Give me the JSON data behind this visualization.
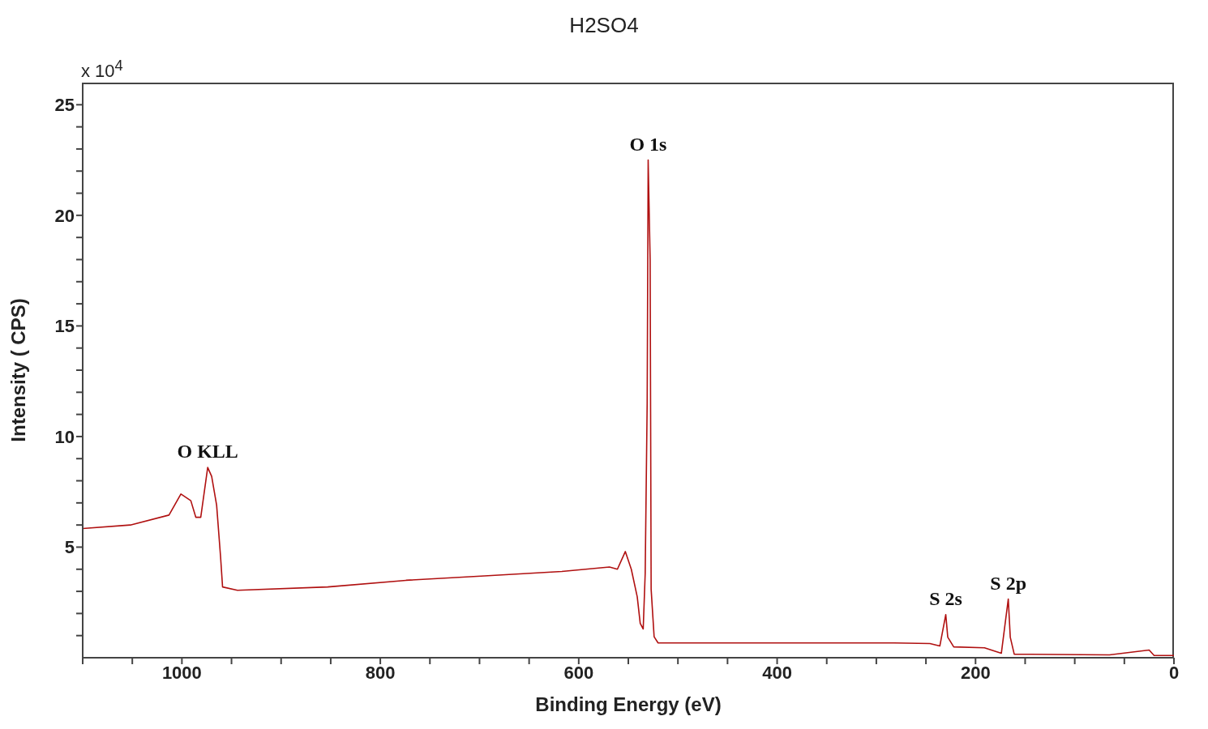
{
  "chart_data": {
    "type": "line",
    "title": "H2SO4",
    "xlabel": "Binding Energy (eV)",
    "ylabel": "Intensity ( CPS)",
    "annotations": [
      "x 10$^{4}$",
      {
        "text": "O KLL",
        "x": 974,
        "y": 8.6
      },
      {
        "text": "O 1s",
        "x": 530,
        "y": 22.5
      },
      {
        "text": "S 2s",
        "x": 230,
        "y": 1.95
      },
      {
        "text": "S 2p",
        "x": 167,
        "y": 2.65
      }
    ],
    "series": [
      {
        "color": "#b01010",
        "x": [
          1100,
          1052,
          1013,
          1001,
          991,
          986,
          981,
          974,
          970,
          965,
          961,
          959,
          944,
          853,
          774,
          695,
          617,
          569,
          561,
          553,
          547,
          541,
          538,
          535,
          533,
          531,
          530,
          528,
          527,
          524,
          520,
          380,
          282,
          246,
          236,
          230,
          228,
          222,
          191,
          174,
          167,
          165,
          161,
          65,
          25,
          20,
          0
        ],
        "values": [
          5.84,
          6.0,
          6.45,
          7.4,
          7.1,
          6.35,
          6.35,
          8.6,
          8.2,
          6.9,
          4.55,
          3.2,
          3.05,
          3.2,
          3.5,
          3.7,
          3.9,
          4.1,
          4.0,
          4.8,
          4.0,
          2.75,
          1.55,
          1.3,
          3.8,
          11.5,
          22.5,
          18,
          3.1,
          0.95,
          0.67,
          0.67,
          0.67,
          0.64,
          0.53,
          1.95,
          0.93,
          0.49,
          0.45,
          0.2,
          2.65,
          0.93,
          0.16,
          0.13,
          0.35,
          0.1,
          0.1
        ]
      }
    ],
    "xlim": [
      1100,
      0
    ],
    "xticks": [
      {
        "value": 1100,
        "label": null
      },
      {
        "value": 1050,
        "label": null
      },
      1000,
      {
        "value": 950,
        "label": null
      },
      {
        "value": 900,
        "label": null
      },
      {
        "value": 850,
        "label": null
      },
      800,
      {
        "value": 750,
        "label": null
      },
      {
        "value": 700,
        "label": null
      },
      {
        "value": 650,
        "label": null
      },
      600,
      {
        "value": 550,
        "label": null
      },
      {
        "value": 500,
        "label": null
      },
      {
        "value": 450,
        "label": null
      },
      400,
      {
        "value": 350,
        "label": null
      },
      {
        "value": 300,
        "label": null
      },
      {
        "value": 250,
        "label": null
      },
      200,
      {
        "value": 150,
        "label": null
      },
      {
        "value": 100,
        "label": null
      },
      {
        "value": 50,
        "label": null
      },
      0
    ],
    "ylim": [
      0,
      26
    ],
    "yticks": [
      {
        "value": 1,
        "label": null
      },
      {
        "value": 2,
        "label": null
      },
      {
        "value": 3,
        "label": null
      },
      {
        "value": 4,
        "label": null
      },
      5,
      {
        "value": 6,
        "label": null
      },
      {
        "value": 7,
        "label": null
      },
      {
        "value": 8,
        "label": null
      },
      {
        "value": 9,
        "label": null
      },
      10,
      {
        "value": 11,
        "label": null
      },
      {
        "value": 12,
        "label": null
      },
      {
        "value": 13,
        "label": null
      },
      {
        "value": 14,
        "label": null
      },
      15,
      {
        "value": 16,
        "label": null
      },
      {
        "value": 17,
        "label": null
      },
      {
        "value": 18,
        "label": null
      },
      {
        "value": 19,
        "label": null
      },
      20,
      {
        "value": 21,
        "label": null
      },
      {
        "value": 22,
        "label": null
      },
      {
        "value": 23,
        "label": null
      },
      {
        "value": 24,
        "label": null
      },
      25
    ],
    "grid": false,
    "legend": false,
    "marker": "none",
    "line_style": "solid"
  }
}
